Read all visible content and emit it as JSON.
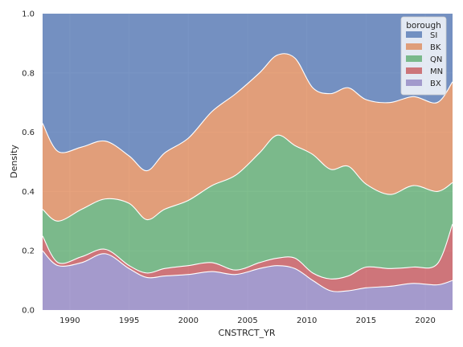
{
  "chart_data": {
    "type": "area",
    "stacked": "fill",
    "xlabel": "CNSTRCT_YR",
    "ylabel": "Density",
    "xlim": [
      1987.7,
      2022.3
    ],
    "ylim": [
      0,
      1
    ],
    "xticks": [
      1990,
      1995,
      2000,
      2005,
      2010,
      2015,
      2020
    ],
    "xtick_labels": [
      "1990",
      "1995",
      "2000",
      "2005",
      "2010",
      "2015",
      "2020"
    ],
    "yticks": [
      0,
      0.2,
      0.4,
      0.6,
      0.8,
      1.0
    ],
    "ytick_labels": [
      "0.0",
      "0.2",
      "0.4",
      "0.6",
      "0.8",
      "1.0"
    ],
    "grid": true,
    "legend": {
      "title": "borough",
      "position": "top-right"
    },
    "x": [
      1987.7,
      1989,
      1991,
      1993,
      1995,
      1996.5,
      1998,
      2000,
      2002,
      2004,
      2006,
      2007.5,
      2009,
      2010.5,
      2012,
      2013.5,
      2015,
      2017,
      2019,
      2021,
      2022.3
    ],
    "series": [
      {
        "name": "BX",
        "color": "#8c7fbf",
        "values": [
          0.2,
          0.15,
          0.16,
          0.19,
          0.14,
          0.11,
          0.115,
          0.12,
          0.13,
          0.12,
          0.14,
          0.15,
          0.14,
          0.1,
          0.065,
          0.065,
          0.075,
          0.08,
          0.09,
          0.085,
          0.1
        ]
      },
      {
        "name": "MN",
        "color": "#c44e52",
        "values": [
          0.05,
          0.01,
          0.02,
          0.015,
          0.01,
          0.015,
          0.025,
          0.03,
          0.03,
          0.015,
          0.02,
          0.025,
          0.035,
          0.025,
          0.04,
          0.05,
          0.07,
          0.06,
          0.055,
          0.07,
          0.19
        ]
      },
      {
        "name": "QN",
        "color": "#55a868",
        "values": [
          0.09,
          0.14,
          0.16,
          0.17,
          0.21,
          0.18,
          0.2,
          0.22,
          0.26,
          0.32,
          0.37,
          0.415,
          0.38,
          0.4,
          0.37,
          0.37,
          0.28,
          0.25,
          0.275,
          0.245,
          0.14
        ]
      },
      {
        "name": "SI",
        "color": "#4c72b0",
        "values": [
          0.37,
          0.465,
          0.45,
          0.43,
          0.48,
          0.53,
          0.47,
          0.42,
          0.33,
          0.27,
          0.2,
          0.14,
          0.15,
          0.25,
          0.27,
          0.25,
          0.29,
          0.3,
          0.28,
          0.3,
          0.23
        ]
      }
    ],
    "note_order_bottom_to_top": [
      "BX",
      "MN",
      "QN",
      "BK",
      "SI"
    ],
    "bk_color": "#dd8452",
    "legend_entries": [
      {
        "name": "SI",
        "color": "#4c72b0"
      },
      {
        "name": "BK",
        "color": "#dd8452"
      },
      {
        "name": "QN",
        "color": "#55a868"
      },
      {
        "name": "MN",
        "color": "#c44e52"
      },
      {
        "name": "BX",
        "color": "#8c7fbf"
      }
    ]
  }
}
